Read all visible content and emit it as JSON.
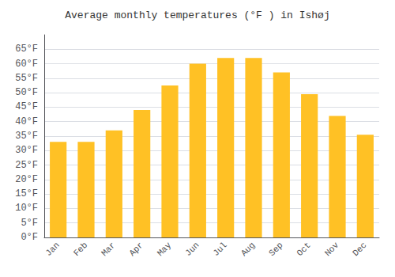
{
  "chart_data": {
    "type": "bar",
    "title": "Average monthly temperatures (°F ) in Ishøj",
    "categories": [
      "Jan",
      "Feb",
      "Mar",
      "Apr",
      "May",
      "Jun",
      "Jul",
      "Aug",
      "Sep",
      "Oct",
      "Nov",
      "Dec"
    ],
    "values": [
      33,
      33,
      37,
      44,
      52.5,
      60,
      62,
      62,
      57,
      49.5,
      42,
      35.5
    ],
    "color": "#FFC125",
    "ylim": [
      0,
      70
    ],
    "yticks": [
      {
        "value": 0,
        "label": "0°F"
      },
      {
        "value": 5,
        "label": "5°F"
      },
      {
        "value": 10,
        "label": "10°F"
      },
      {
        "value": 15,
        "label": "15°F"
      },
      {
        "value": 20,
        "label": "20°F"
      },
      {
        "value": 25,
        "label": "25°F"
      },
      {
        "value": 30,
        "label": "30°F"
      },
      {
        "value": 35,
        "label": "35°F"
      },
      {
        "value": 40,
        "label": "40°F"
      },
      {
        "value": 45,
        "label": "45°F"
      },
      {
        "value": 50,
        "label": "50°F"
      },
      {
        "value": 55,
        "label": "55°F"
      },
      {
        "value": 60,
        "label": "60°F"
      },
      {
        "value": 65,
        "label": "65°F"
      }
    ],
    "grid": true
  }
}
